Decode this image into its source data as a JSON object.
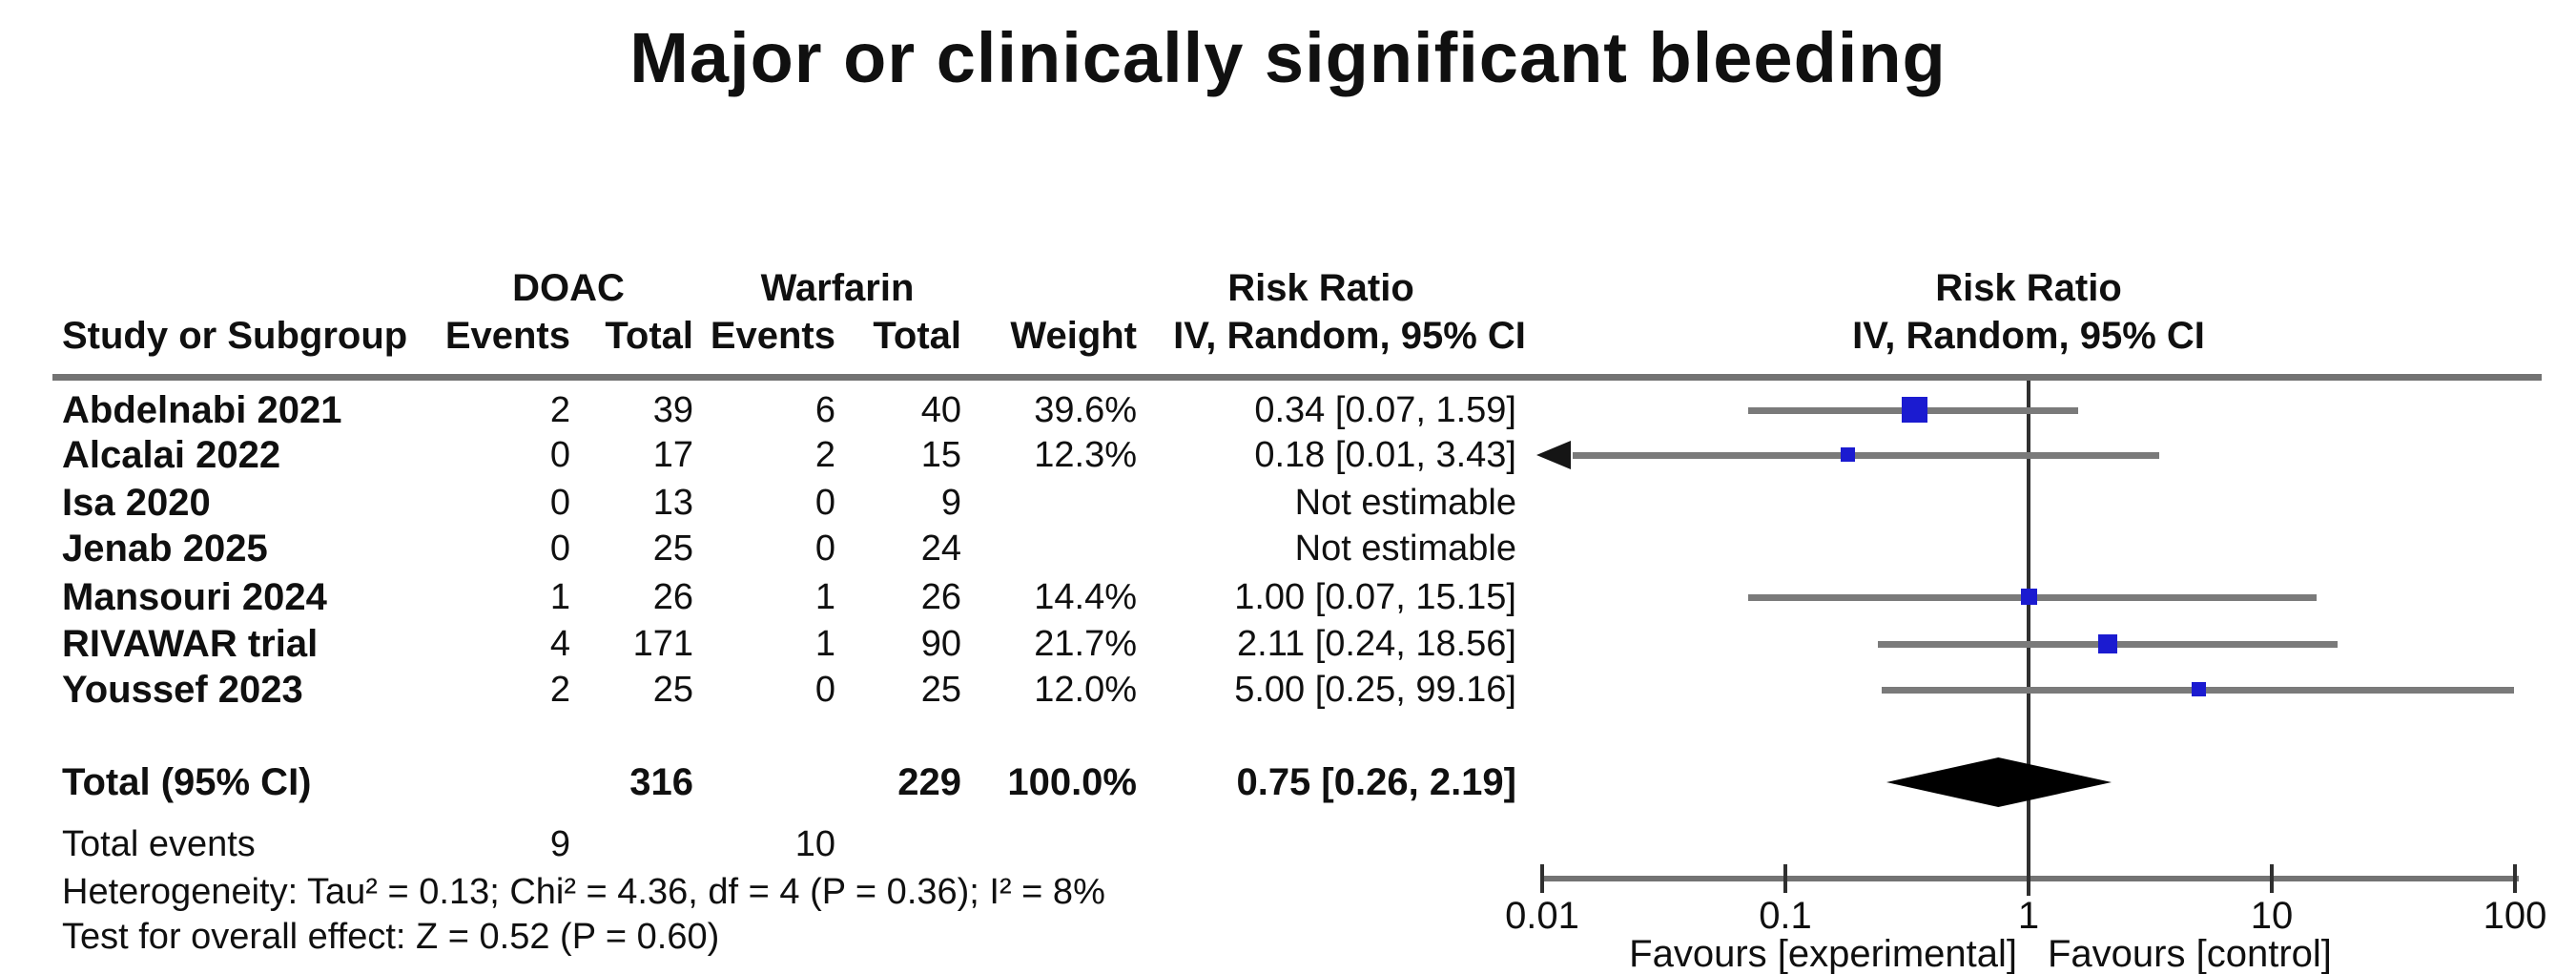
{
  "title": "Major or clinically significant bleeding",
  "table": {
    "study_col_header": "Study or Subgroup",
    "group1_label": "DOAC",
    "group2_label": "Warfarin",
    "events_header": "Events",
    "total_header": "Total",
    "weight_header": "Weight",
    "rr_header": "Risk Ratio",
    "method_header": "IV, Random, 95% CI",
    "total_row_label": "Total (95% CI)",
    "total_doac_n": "316",
    "total_warf_n": "229",
    "total_weight": "100.0%",
    "total_rr_text": "0.75 [0.26, 2.19]",
    "total_events_label": "Total events",
    "total_doac_events": "9",
    "total_warf_events": "10",
    "heterogeneity": "Heterogeneity: Tau² = 0.13; Chi² = 4.36, df = 4 (P = 0.36); I² = 8%",
    "overall_effect": "Test for overall effect: Z = 0.52 (P = 0.60)"
  },
  "chart_data": {
    "type": "forest",
    "x_scale": "log10",
    "xlim": [
      0.01,
      100
    ],
    "x_ticks": [
      "0.01",
      "0.1",
      "1",
      "10",
      "100"
    ],
    "favours_left": "Favours [experimental]",
    "favours_right": "Favours [control]",
    "marker_color": "#1b1bd0",
    "ci_color": "#7a7a7a",
    "diamond_color": "#000000",
    "studies": [
      {
        "name": "Abdelnabi 2021",
        "doac_events": "2",
        "doac_total": "39",
        "warf_events": "6",
        "warf_total": "40",
        "weight": "39.6%",
        "weight_pct": 39.6,
        "rr_text": "0.34 [0.07, 1.59]",
        "rr": 0.34,
        "lo": 0.07,
        "hi": 1.59,
        "arrow_low": false
      },
      {
        "name": "Alcalai 2022",
        "doac_events": "0",
        "doac_total": "17",
        "warf_events": "2",
        "warf_total": "15",
        "weight": "12.3%",
        "weight_pct": 12.3,
        "rr_text": "0.18 [0.01, 3.43]",
        "rr": 0.18,
        "lo": 0.01,
        "hi": 3.43,
        "arrow_low": true
      },
      {
        "name": "Isa 2020",
        "doac_events": "0",
        "doac_total": "13",
        "warf_events": "0",
        "warf_total": "9",
        "weight": "",
        "weight_pct": null,
        "rr_text": "Not estimable",
        "rr": null,
        "lo": null,
        "hi": null,
        "arrow_low": false
      },
      {
        "name": "Jenab 2025",
        "doac_events": "0",
        "doac_total": "25",
        "warf_events": "0",
        "warf_total": "24",
        "weight": "",
        "weight_pct": null,
        "rr_text": "Not estimable",
        "rr": null,
        "lo": null,
        "hi": null,
        "arrow_low": false
      },
      {
        "name": "Mansouri 2024",
        "doac_events": "1",
        "doac_total": "26",
        "warf_events": "1",
        "warf_total": "26",
        "weight": "14.4%",
        "weight_pct": 14.4,
        "rr_text": "1.00 [0.07, 15.15]",
        "rr": 1.0,
        "lo": 0.07,
        "hi": 15.15,
        "arrow_low": false
      },
      {
        "name": "RIVAWAR trial",
        "doac_events": "4",
        "doac_total": "171",
        "warf_events": "1",
        "warf_total": "90",
        "weight": "21.7%",
        "weight_pct": 21.7,
        "rr_text": "2.11 [0.24, 18.56]",
        "rr": 2.11,
        "lo": 0.24,
        "hi": 18.56,
        "arrow_low": false
      },
      {
        "name": "Youssef 2023",
        "doac_events": "2",
        "doac_total": "25",
        "warf_events": "0",
        "warf_total": "25",
        "weight": "12.0%",
        "weight_pct": 12.0,
        "rr_text": "5.00 [0.25, 99.16]",
        "rr": 5.0,
        "lo": 0.25,
        "hi": 99.16,
        "arrow_low": false
      }
    ],
    "total": {
      "rr": 0.75,
      "lo": 0.26,
      "hi": 2.19
    }
  }
}
